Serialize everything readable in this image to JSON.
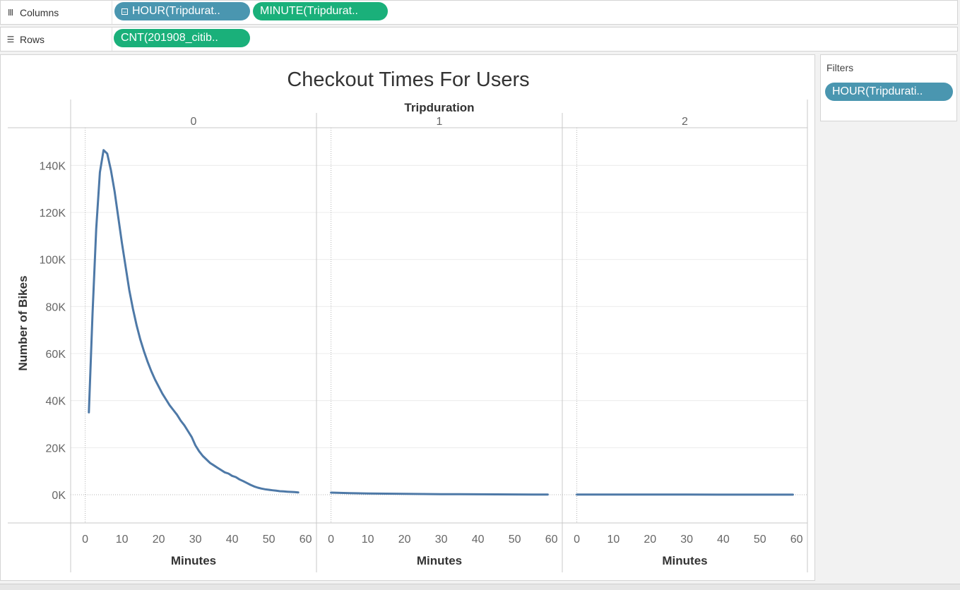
{
  "shelves": {
    "columns": {
      "label": "Columns",
      "icon": "columns-icon",
      "pills": [
        {
          "label": "HOUR(Tripdurat..",
          "color": "#4a96b0",
          "has_collapse": true
        },
        {
          "label": "MINUTE(Tripdurat..",
          "color": "#1ab07a",
          "has_collapse": false
        }
      ]
    },
    "rows": {
      "label": "Rows",
      "icon": "rows-icon",
      "pills": [
        {
          "label": "CNT(201908_citib..",
          "color": "#1ab07a",
          "has_collapse": false
        }
      ]
    }
  },
  "filters": {
    "title": "Filters",
    "pills": [
      {
        "label": "HOUR(Tripdurati..",
        "color": "#4a96b0"
      }
    ]
  },
  "chart_data": {
    "type": "line",
    "title": "Checkout Times For Users",
    "column_header": "Tripduration",
    "ylabel": "Number of Bikes",
    "ylim": [
      -12000,
      156000
    ],
    "y_ticks": [
      0,
      20000,
      40000,
      60000,
      80000,
      100000,
      120000,
      140000
    ],
    "y_tick_labels": [
      "0K",
      "20K",
      "40K",
      "60K",
      "80K",
      "100K",
      "120K",
      "140K"
    ],
    "x_ticks": [
      0,
      10,
      20,
      30,
      40,
      50,
      60
    ],
    "xlim": [
      -3,
      62
    ],
    "line_color": "#4e79a7",
    "grid": true,
    "panels": [
      {
        "header": "0",
        "xlabel": "Minutes",
        "x": [
          1,
          2,
          3,
          4,
          5,
          6,
          7,
          8,
          9,
          10,
          11,
          12,
          13,
          14,
          15,
          16,
          17,
          18,
          19,
          20,
          21,
          22,
          23,
          24,
          25,
          26,
          27,
          28,
          29,
          30,
          31,
          32,
          33,
          34,
          35,
          36,
          37,
          38,
          39,
          40,
          41,
          42,
          43,
          44,
          45,
          46,
          47,
          48,
          49,
          50,
          51,
          52,
          53,
          54,
          55,
          56,
          57,
          58
        ],
        "y": [
          35000,
          77000,
          113000,
          137000,
          146500,
          145000,
          138000,
          129000,
          118000,
          107000,
          97000,
          87000,
          79000,
          72000,
          66000,
          61000,
          56500,
          52500,
          49000,
          46000,
          43000,
          40500,
          38000,
          36000,
          34000,
          31500,
          29500,
          27000,
          24500,
          21000,
          18500,
          16500,
          15000,
          13500,
          12500,
          11500,
          10500,
          9500,
          9000,
          8000,
          7500,
          6500,
          5800,
          5000,
          4200,
          3500,
          3000,
          2600,
          2300,
          2100,
          1900,
          1700,
          1500,
          1400,
          1300,
          1200,
          1100,
          1000
        ]
      },
      {
        "header": "1",
        "xlabel": "Minutes",
        "x": [
          0,
          5,
          10,
          15,
          20,
          25,
          30,
          35,
          40,
          45,
          50,
          55,
          59
        ],
        "y": [
          900,
          700,
          550,
          450,
          370,
          300,
          250,
          200,
          170,
          150,
          120,
          100,
          90
        ]
      },
      {
        "header": "2",
        "xlabel": "Minutes",
        "x": [
          0,
          10,
          20,
          30,
          40,
          50,
          59
        ],
        "y": [
          90,
          75,
          60,
          50,
          40,
          30,
          25
        ]
      }
    ]
  }
}
